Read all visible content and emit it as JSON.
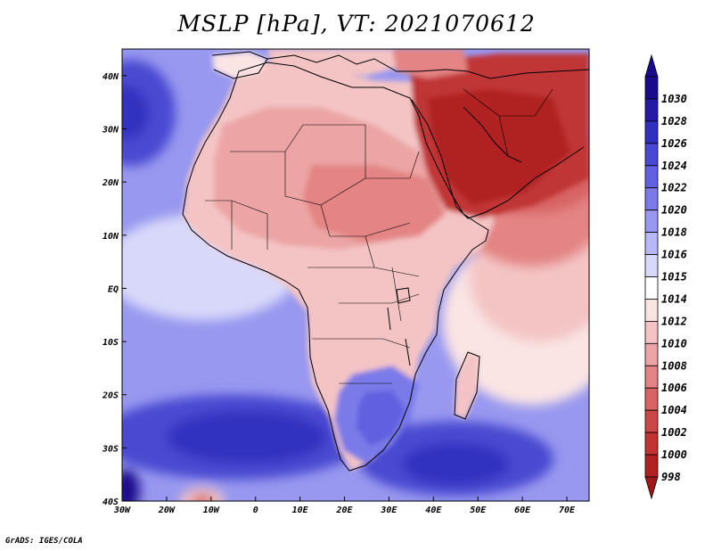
{
  "title": "MSLP [hPa], VT: 2021070612",
  "credit": "GrADS: IGES/COLA",
  "axes": {
    "lon_range": [
      -30,
      75
    ],
    "lat_range": [
      -40,
      45
    ],
    "x_ticks": [
      {
        "value": -30,
        "label": "30W"
      },
      {
        "value": -20,
        "label": "20W"
      },
      {
        "value": -10,
        "label": "10W"
      },
      {
        "value": 0,
        "label": "0"
      },
      {
        "value": 10,
        "label": "10E"
      },
      {
        "value": 20,
        "label": "20E"
      },
      {
        "value": 30,
        "label": "30E"
      },
      {
        "value": 40,
        "label": "40E"
      },
      {
        "value": 50,
        "label": "50E"
      },
      {
        "value": 60,
        "label": "60E"
      },
      {
        "value": 70,
        "label": "70E"
      }
    ],
    "y_ticks": [
      {
        "value": 40,
        "label": "40N"
      },
      {
        "value": 30,
        "label": "30N"
      },
      {
        "value": 20,
        "label": "20N"
      },
      {
        "value": 10,
        "label": "10N"
      },
      {
        "value": 0,
        "label": "EQ"
      },
      {
        "value": -10,
        "label": "10S"
      },
      {
        "value": -20,
        "label": "20S"
      },
      {
        "value": -30,
        "label": "30S"
      },
      {
        "value": -40,
        "label": "40S"
      }
    ]
  },
  "colorbar": [
    {
      "label": "1030",
      "color": "#1a0a8c"
    },
    {
      "label": "1028",
      "color": "#241aa6"
    },
    {
      "label": "1026",
      "color": "#3030c0"
    },
    {
      "label": "1024",
      "color": "#4848d2"
    },
    {
      "label": "1022",
      "color": "#6060e0"
    },
    {
      "label": "1020",
      "color": "#7a7ae8"
    },
    {
      "label": "1018",
      "color": "#9898f0"
    },
    {
      "label": "1016",
      "color": "#b8b8f6"
    },
    {
      "label": "1015",
      "color": "#d8d8fa"
    },
    {
      "label": "1014",
      "color": "#ffffff"
    },
    {
      "label": "1012",
      "color": "#fae4e4"
    },
    {
      "label": "1010",
      "color": "#f4c4c4"
    },
    {
      "label": "1008",
      "color": "#eca4a4"
    },
    {
      "label": "1006",
      "color": "#e48484"
    },
    {
      "label": "1004",
      "color": "#d86464"
    },
    {
      "label": "1002",
      "color": "#cc4848"
    },
    {
      "label": "1000",
      "color": "#c03434"
    },
    {
      "label": "998",
      "color": "#b02222"
    }
  ],
  "colorbar_top_color": "#1a0a8c",
  "colorbar_bottom_color": "#a01818",
  "field": {
    "background": "#9898f0",
    "blobs": [
      {
        "id": "south-atlantic-high",
        "lon": -5,
        "lat": -28,
        "rx": 30,
        "ry": 8,
        "color": "#4848d2"
      },
      {
        "id": "south-atlantic-core",
        "lon": -2,
        "lat": -28,
        "rx": 18,
        "ry": 5,
        "color": "#3030c0"
      },
      {
        "id": "indian-ocean-high",
        "lon": 45,
        "lat": -32,
        "rx": 22,
        "ry": 7,
        "color": "#4848d2"
      },
      {
        "id": "indian-ocean-core",
        "lon": 45,
        "lat": -33,
        "rx": 12,
        "ry": 4,
        "color": "#3030c0"
      },
      {
        "id": "sw-corner-core",
        "lon": -29,
        "lat": -38,
        "rx": 3,
        "ry": 4,
        "color": "#1a0a8c"
      },
      {
        "id": "azores-high",
        "lon": -28,
        "lat": 33,
        "rx": 10,
        "ry": 10,
        "color": "#4848d2"
      },
      {
        "id": "azores-core",
        "lon": -29,
        "lat": 33,
        "rx": 5,
        "ry": 5,
        "color": "#3030c0"
      },
      {
        "id": "se-africa-high",
        "lon": 28,
        "lat": -26,
        "rx": 6,
        "ry": 5,
        "color": "#4848d2"
      },
      {
        "id": "se-africa-core",
        "lon": 28,
        "lat": -27,
        "rx": 3,
        "ry": 2.5,
        "color": "#3030c0"
      },
      {
        "id": "eq-atlantic-pale",
        "lon": -12,
        "lat": 4,
        "rx": 22,
        "ry": 10,
        "color": "#d8d8fa"
      },
      {
        "id": "indian-pale",
        "lon": 62,
        "lat": -6,
        "rx": 20,
        "ry": 16,
        "color": "#fae4e4"
      },
      {
        "id": "indian-pink",
        "lon": 64,
        "lat": 2,
        "rx": 16,
        "ry": 12,
        "color": "#f4c4c4"
      },
      {
        "id": "arabian-sea-pink",
        "lon": 62,
        "lat": 14,
        "rx": 16,
        "ry": 10,
        "color": "#e48484"
      },
      {
        "id": "arabian-sea-deep",
        "lon": 62,
        "lat": 22,
        "rx": 16,
        "ry": 8,
        "color": "#d86464"
      },
      {
        "id": "south-atl-low",
        "lon": -12,
        "lat": -40,
        "rx": 5,
        "ry": 2.5,
        "color": "#f4c4c4"
      },
      {
        "id": "south-atl-low-core",
        "lon": -12,
        "lat": -40,
        "rx": 2.5,
        "ry": 1.2,
        "color": "#d86464"
      }
    ],
    "land_areas": [
      {
        "id": "africa",
        "color": "#f4c4c4"
      },
      {
        "id": "sahara-core",
        "color": "#eca4a4"
      },
      {
        "id": "sahel-low",
        "color": "#e48484"
      },
      {
        "id": "arabia-persia",
        "color": "#c03434"
      },
      {
        "id": "arabia-deep",
        "color": "#b02222"
      },
      {
        "id": "southern-africa-blue",
        "color": "#7a7ae8"
      },
      {
        "id": "southern-africa-deep",
        "color": "#6060e0"
      },
      {
        "id": "madagascar",
        "color": "#f4c4c4"
      },
      {
        "id": "spain",
        "color": "#fae4e4"
      },
      {
        "id": "europe-south",
        "color": "#f4c4c4"
      },
      {
        "id": "anatolia",
        "color": "#e48484"
      }
    ]
  }
}
